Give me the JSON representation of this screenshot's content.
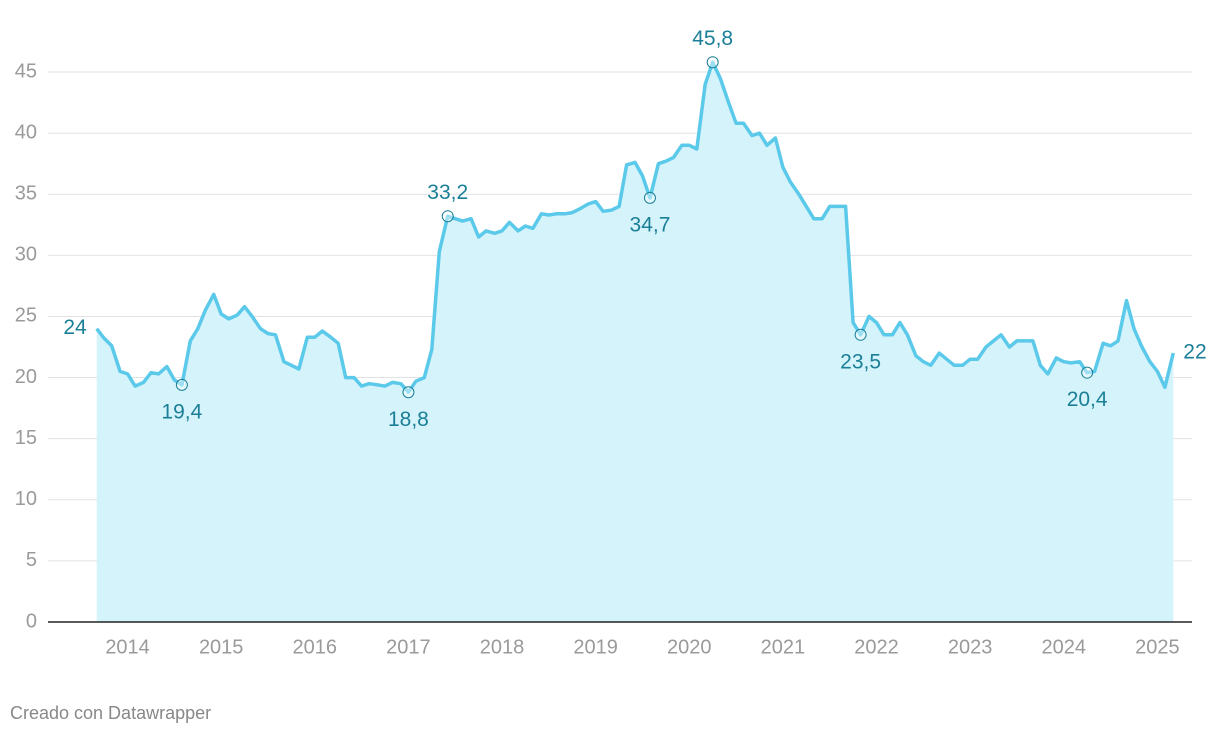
{
  "chart_data": {
    "type": "area",
    "x": [
      2013.67,
      2013.75,
      2013.83,
      2013.92,
      2014.0,
      2014.08,
      2014.17,
      2014.25,
      2014.33,
      2014.42,
      2014.5,
      2014.58,
      2014.67,
      2014.75,
      2014.83,
      2014.92,
      2015.0,
      2015.08,
      2015.17,
      2015.25,
      2015.33,
      2015.42,
      2015.5,
      2015.58,
      2015.67,
      2015.75,
      2015.83,
      2015.92,
      2016.0,
      2016.08,
      2016.17,
      2016.25,
      2016.33,
      2016.42,
      2016.5,
      2016.58,
      2016.67,
      2016.75,
      2016.83,
      2016.92,
      2017.0,
      2017.08,
      2017.17,
      2017.25,
      2017.33,
      2017.42,
      2017.5,
      2017.58,
      2017.67,
      2017.75,
      2017.83,
      2017.92,
      2018.0,
      2018.08,
      2018.17,
      2018.25,
      2018.33,
      2018.42,
      2018.5,
      2018.58,
      2018.67,
      2018.75,
      2018.83,
      2018.92,
      2019.0,
      2019.08,
      2019.17,
      2019.25,
      2019.33,
      2019.42,
      2019.5,
      2019.58,
      2019.67,
      2019.75,
      2019.83,
      2019.92,
      2020.0,
      2020.08,
      2020.17,
      2020.25,
      2020.33,
      2020.42,
      2020.5,
      2020.58,
      2020.67,
      2020.75,
      2020.83,
      2020.92,
      2021.0,
      2021.08,
      2021.17,
      2021.25,
      2021.33,
      2021.42,
      2021.5,
      2021.58,
      2021.67,
      2021.75,
      2021.83,
      2021.92,
      2022.0,
      2022.08,
      2022.17,
      2022.25,
      2022.33,
      2022.42,
      2022.5,
      2022.58,
      2022.67,
      2022.75,
      2022.83,
      2022.92,
      2023.0,
      2023.08,
      2023.17,
      2023.25,
      2023.33,
      2023.42,
      2023.5,
      2023.58,
      2023.67,
      2023.75,
      2023.83,
      2023.92,
      2024.0,
      2024.08,
      2024.17,
      2024.25,
      2024.33,
      2024.42,
      2024.5,
      2024.58,
      2024.67,
      2024.75,
      2024.83,
      2024.92,
      2025.0,
      2025.08,
      2025.17
    ],
    "series": [
      {
        "color": "#5bc9ea",
        "fill": "#d5f3fa",
        "values": [
          24,
          23.2,
          22.6,
          20.5,
          20.3,
          19.3,
          19.6,
          20.4,
          20.3,
          20.9,
          19.8,
          19.4,
          23,
          24,
          25.5,
          26.8,
          25.2,
          24.8,
          25.1,
          25.8,
          25,
          24,
          23.6,
          23.5,
          21.3,
          21,
          20.7,
          23.3,
          23.3,
          23.8,
          23.3,
          22.8,
          20,
          20,
          19.3,
          19.5,
          19.4,
          19.3,
          19.6,
          19.5,
          18.8,
          19.7,
          20,
          22.3,
          30.3,
          33.2,
          33,
          32.8,
          33,
          31.5,
          32,
          31.8,
          32,
          32.7,
          32,
          32.4,
          32.2,
          33.4,
          33.3,
          33.4,
          33.4,
          33.5,
          33.8,
          34.2,
          34.4,
          33.6,
          33.7,
          34,
          37.4,
          37.6,
          36.5,
          34.7,
          37.5,
          37.7,
          38,
          39,
          39,
          38.7,
          44,
          45.8,
          44.5,
          42.5,
          40.8,
          40.8,
          39.8,
          40,
          39,
          39.6,
          37.2,
          36,
          35,
          34,
          33,
          33,
          34,
          34,
          34,
          24.5,
          23.5,
          25,
          24.5,
          23.5,
          23.5,
          24.5,
          23.5,
          21.8,
          21.3,
          21,
          22,
          21.5,
          21,
          21,
          21.5,
          21.5,
          22.5,
          23,
          23.5,
          22.5,
          23,
          23,
          23,
          21,
          20.3,
          21.6,
          21.3,
          21.2,
          21.3,
          20.4,
          20.5,
          22.8,
          22.6,
          23,
          26.3,
          24,
          22.6,
          21.3,
          20.5,
          19.2,
          22
        ],
        "value_labels": [
          "24",
          null,
          null,
          null,
          null,
          null,
          null,
          null,
          null,
          null,
          null,
          "19,4",
          null,
          null,
          null,
          null,
          null,
          null,
          null,
          null,
          null,
          null,
          null,
          null,
          null,
          null,
          null,
          null,
          null,
          null,
          null,
          null,
          null,
          null,
          null,
          null,
          null,
          null,
          null,
          null,
          "18,8",
          null,
          null,
          null,
          null,
          "33,2",
          null,
          null,
          null,
          null,
          null,
          null,
          null,
          null,
          null,
          null,
          null,
          null,
          null,
          null,
          null,
          null,
          null,
          null,
          null,
          null,
          null,
          null,
          null,
          null,
          null,
          "34,7",
          null,
          null,
          null,
          null,
          null,
          null,
          null,
          "45,8",
          null,
          null,
          null,
          null,
          null,
          null,
          null,
          null,
          null,
          null,
          null,
          null,
          null,
          null,
          null,
          null,
          null,
          null,
          "23,5",
          null,
          null,
          null,
          null,
          null,
          null,
          null,
          null,
          null,
          null,
          null,
          null,
          null,
          null,
          null,
          null,
          null,
          null,
          null,
          null,
          null,
          null,
          null,
          null,
          null,
          null,
          null,
          null,
          "20,4",
          null,
          null,
          null,
          null,
          null,
          null,
          null,
          null,
          null,
          null,
          "22"
        ]
      }
    ],
    "xlim": [
      2013.15,
      2025.37
    ],
    "xticks": [
      2014,
      2015,
      2016,
      2017,
      2018,
      2019,
      2020,
      2021,
      2022,
      2023,
      2024,
      2025
    ],
    "ylim": [
      0,
      45
    ],
    "yticks": [
      0,
      5,
      10,
      15,
      20,
      25,
      30,
      35,
      40,
      45
    ],
    "grid": true
  },
  "credit": "Creado con Datawrapper"
}
